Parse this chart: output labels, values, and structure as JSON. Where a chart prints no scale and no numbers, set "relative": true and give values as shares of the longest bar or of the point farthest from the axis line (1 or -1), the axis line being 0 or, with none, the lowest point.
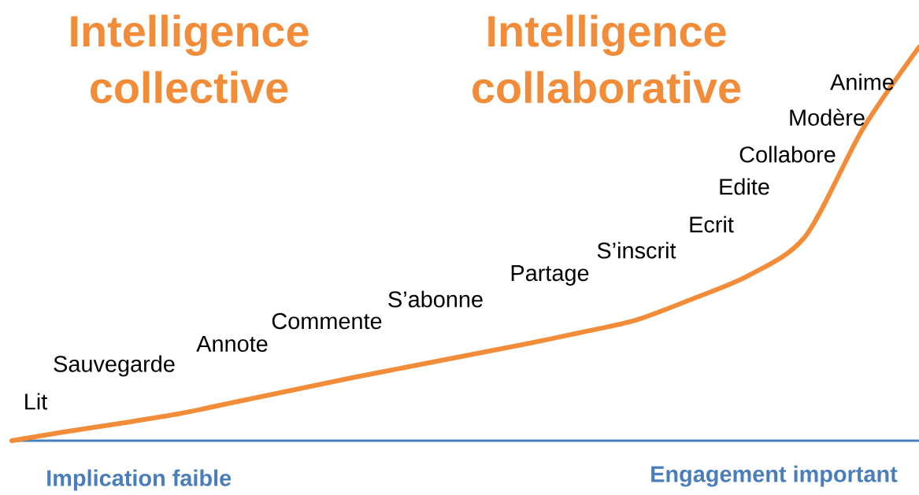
{
  "chart_data": {
    "type": "line",
    "relative": true,
    "categories": [
      null,
      null,
      null,
      null,
      null,
      null,
      null,
      null,
      null,
      null,
      null,
      null,
      null,
      null,
      null,
      null,
      null
    ],
    "series": [
      {
        "color": "#f28c38",
        "values": [
          0,
          0.024,
          0.046,
          0.07,
          0.1,
          0.13,
          0.16,
          0.188,
          0.216,
          0.244,
          0.274,
          0.306,
          0.36,
          0.42,
          0.52,
          0.79,
          1.0
        ]
      }
    ],
    "annotations": [
      "Intelligence collective",
      "Intelligence collaborative",
      "Implication faible",
      "Engagement important",
      "Lit",
      "Sauvegarde",
      "Annote",
      "Commente",
      "S’abonne",
      "Partage",
      "S’inscrit",
      "Ecrit",
      "Edite",
      "Collabore",
      "Modère",
      "Anime"
    ],
    "marker": "none",
    "line_style": "solid"
  }
}
